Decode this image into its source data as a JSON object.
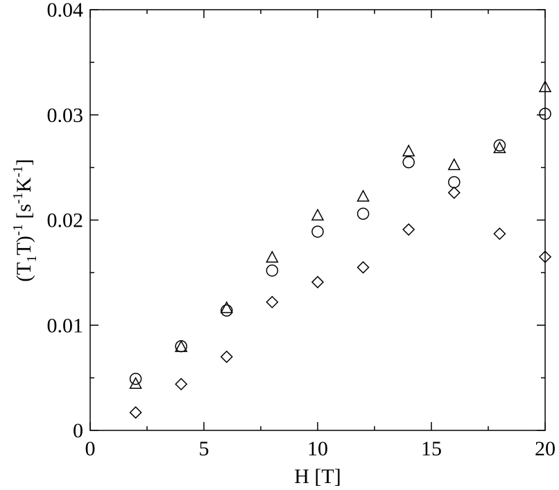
{
  "chart_data": {
    "type": "scatter",
    "xlabel": "H [T]",
    "ylabel": "(T1T)-1 [s-1K-1]",
    "xlim": [
      0,
      20
    ],
    "ylim": [
      0,
      0.04
    ],
    "x_ticks": [
      "0",
      "5",
      "10",
      "15",
      "20"
    ],
    "y_ticks": [
      "0",
      "0.01",
      "0.02",
      "0.03",
      "0.04"
    ],
    "grid": false,
    "series": [
      {
        "marker": "circle",
        "x": [
          2,
          4,
          6,
          8,
          10,
          12,
          14,
          16,
          18,
          20
        ],
        "y": [
          0.0049,
          0.008,
          0.0114,
          0.0152,
          0.0189,
          0.0206,
          0.0255,
          0.0236,
          0.0271,
          0.0301
        ]
      },
      {
        "marker": "triangle",
        "x": [
          2,
          4,
          6,
          8,
          10,
          12,
          14,
          16,
          18,
          20
        ],
        "y": [
          0.0044,
          0.0079,
          0.0116,
          0.0164,
          0.0204,
          0.0222,
          0.0265,
          0.0252,
          0.0268,
          0.0326
        ]
      },
      {
        "marker": "diamond",
        "x": [
          2,
          4,
          6,
          8,
          10,
          12,
          14,
          16,
          18,
          20
        ],
        "y": [
          0.0017,
          0.0044,
          0.007,
          0.0122,
          0.0141,
          0.0155,
          0.0191,
          0.0226,
          0.0187,
          0.0165
        ]
      }
    ]
  }
}
